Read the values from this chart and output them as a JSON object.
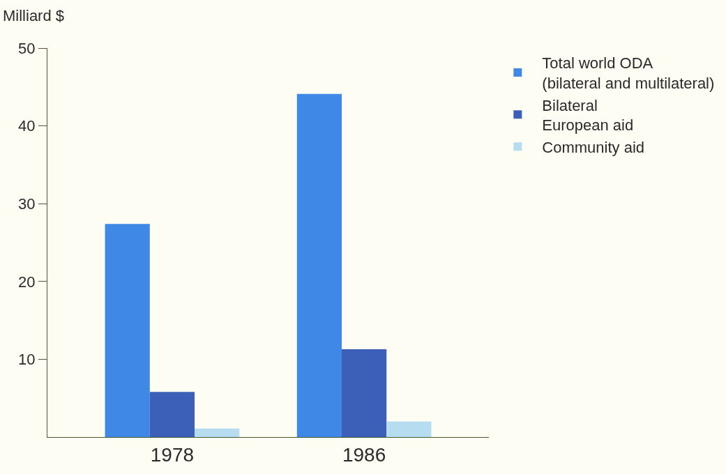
{
  "chart_data": {
    "type": "bar",
    "ylabel": "Milliard $",
    "categories": [
      "1978",
      "1986"
    ],
    "series": [
      {
        "name": "Total world ODA\n(bilateral and multilateral)",
        "color": "#3f88e6",
        "values": [
          27.4,
          44.1
        ]
      },
      {
        "name": "Bilateral\nEuropean aid",
        "color": "#3c5fb8",
        "values": [
          5.8,
          11.3
        ]
      },
      {
        "name": "Community aid",
        "color": "#b5dcef",
        "values": [
          1.1,
          2.0
        ]
      }
    ],
    "ylim": [
      0,
      50
    ],
    "yticks": [
      10,
      20,
      30,
      40,
      50
    ],
    "grid": false,
    "legend": "top right"
  }
}
